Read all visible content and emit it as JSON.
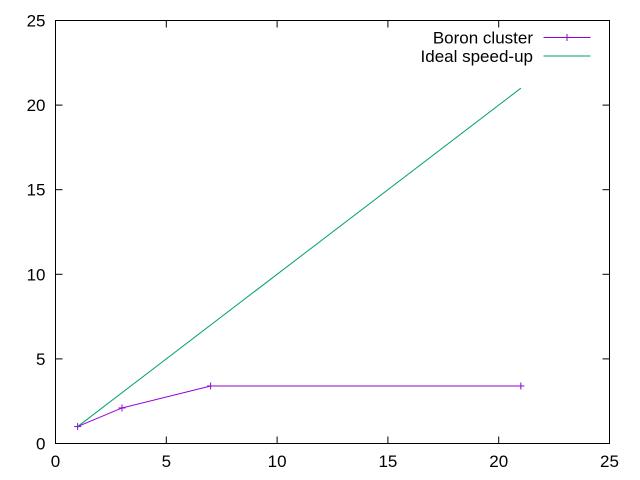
{
  "window": {
    "background": "#ffffff"
  },
  "chart_data": {
    "type": "line",
    "title": "",
    "xlabel": "",
    "ylabel": "",
    "xlim": [
      0,
      25
    ],
    "ylim": [
      0,
      25
    ],
    "xticks": [
      0,
      5,
      10,
      15,
      20,
      25
    ],
    "yticks": [
      0,
      5,
      10,
      15,
      20,
      25
    ],
    "grid": false,
    "legend_position": "top-right-inside",
    "axis_color": "#000000",
    "text_color": "#000000",
    "background_color": "#ffffff",
    "series": [
      {
        "name": "Boron cluster",
        "color": "#9400d3",
        "marker": "plus",
        "x": [
          1,
          3,
          7,
          21
        ],
        "y": [
          1.0,
          2.1,
          3.4,
          3.4
        ]
      },
      {
        "name": "Ideal speed-up",
        "color": "#009e73",
        "marker": "none",
        "x": [
          1,
          21
        ],
        "y": [
          1.0,
          21.0
        ]
      }
    ]
  }
}
